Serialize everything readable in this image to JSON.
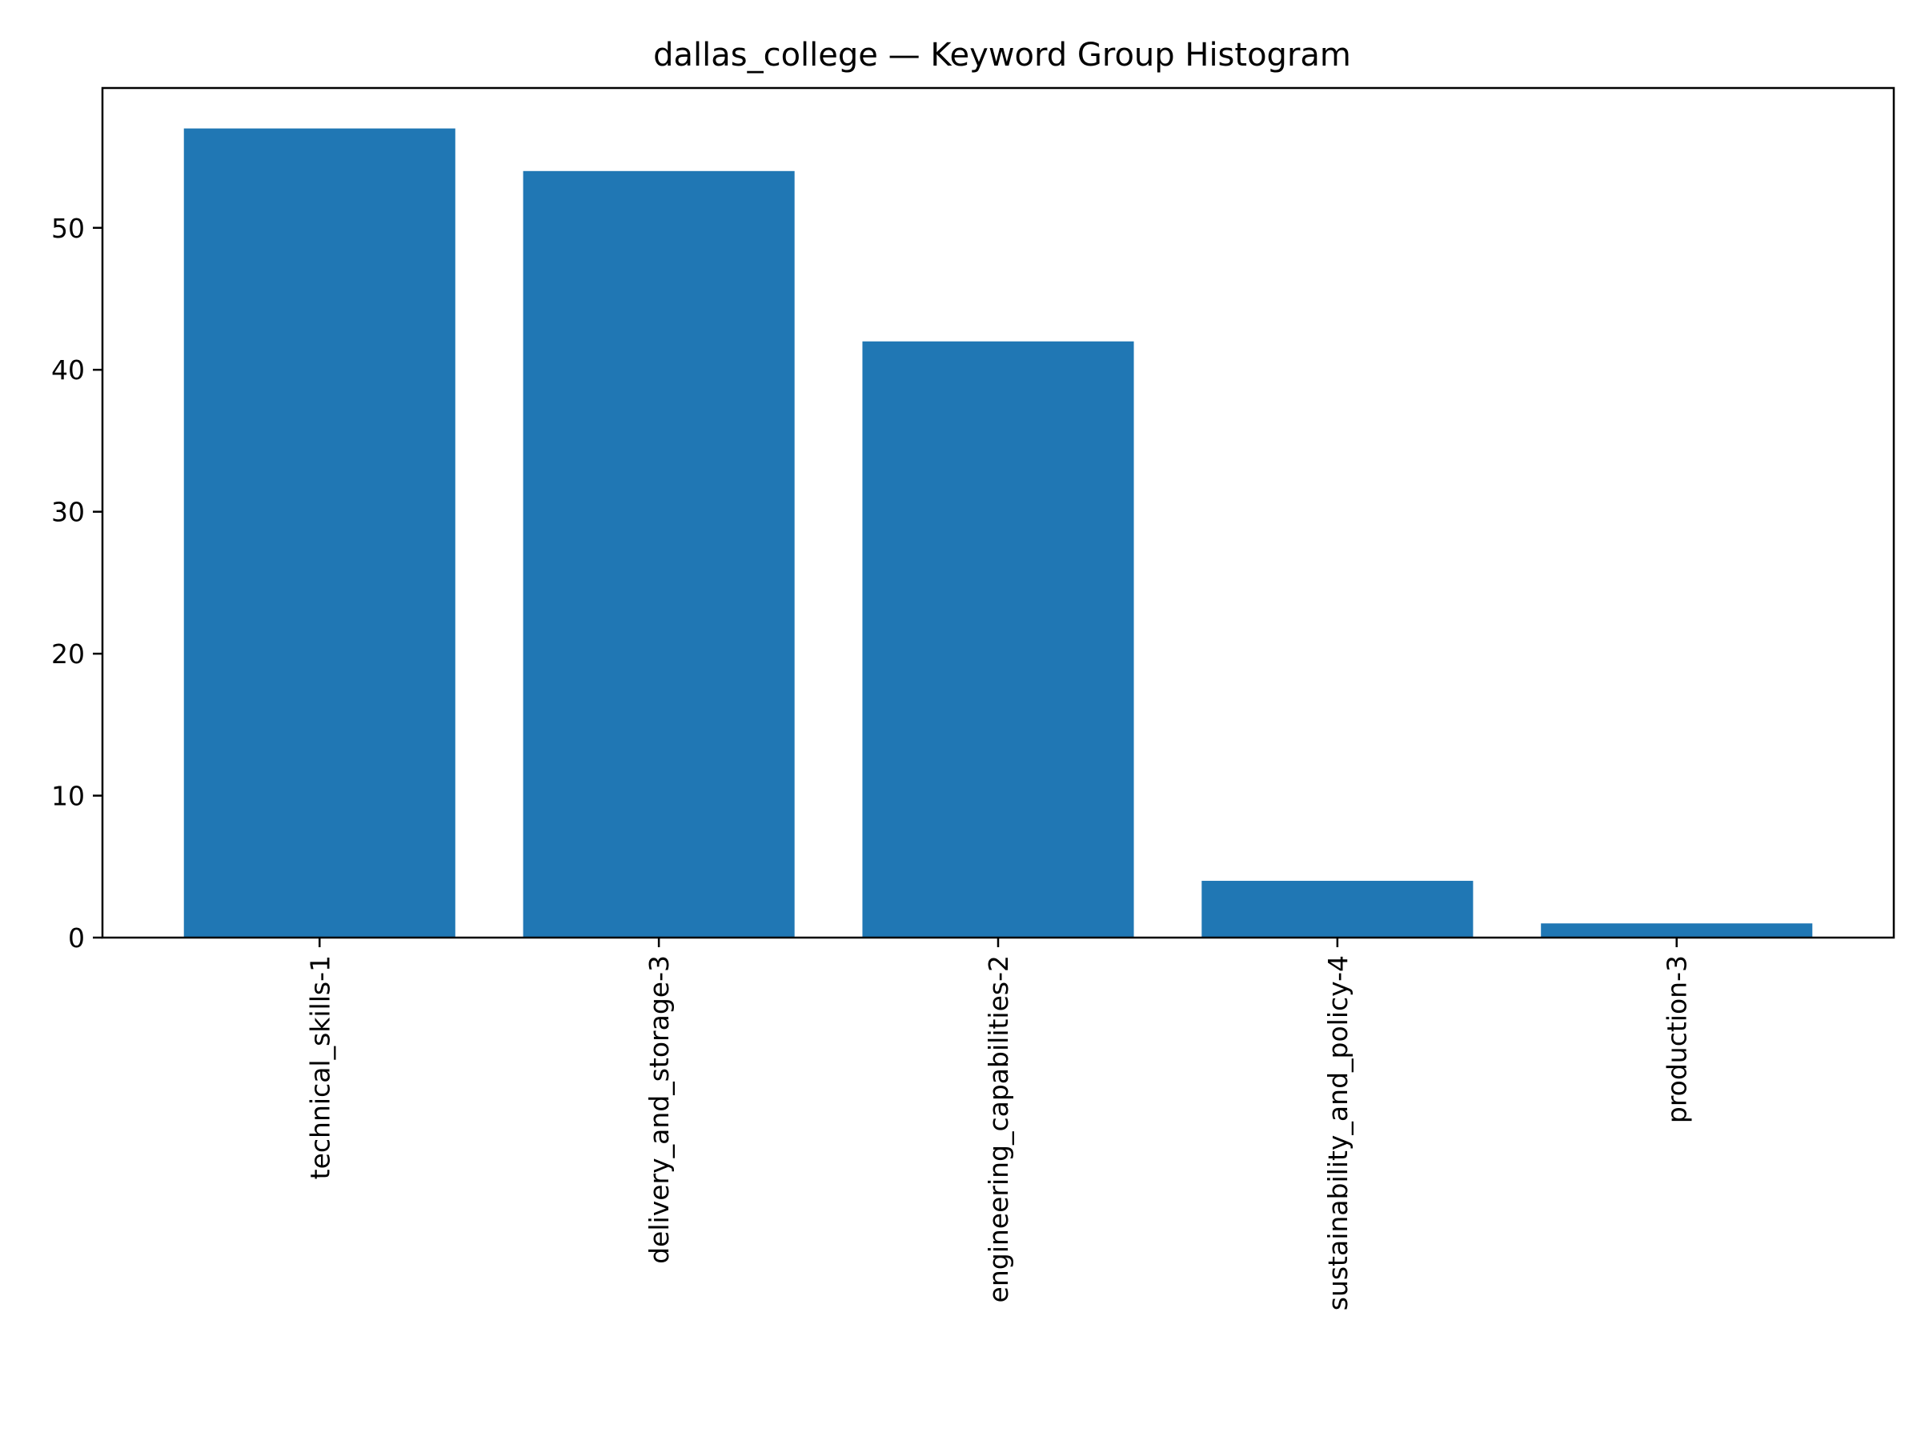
{
  "chart_data": {
    "type": "bar",
    "title": "dallas_college — Keyword Group Histogram",
    "xlabel": "",
    "ylabel": "",
    "categories": [
      "technical_skills-1",
      "delivery_and_storage-3",
      "engineering_capabilities-2",
      "sustainability_and_policy-4",
      "production-3"
    ],
    "values": [
      57,
      54,
      42,
      4,
      1
    ],
    "ylim": [
      0,
      59.85
    ],
    "yticks": [
      0,
      10,
      20,
      30,
      40,
      50
    ],
    "grid": false,
    "legend": "none",
    "bar_color": "#2077b4",
    "axis_color": "#000000"
  }
}
